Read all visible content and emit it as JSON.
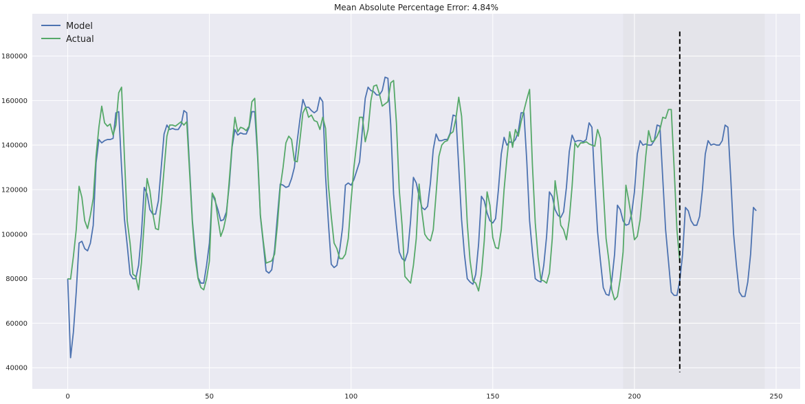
{
  "chart_data": {
    "type": "line",
    "title": "Mean Absolute Percentage Error: 4.84%",
    "xlabel": "",
    "ylabel": "",
    "xlim": [
      -12.5,
      258.5
    ],
    "ylim": [
      30500,
      199000
    ],
    "x_ticks": [
      0,
      50,
      100,
      150,
      200,
      250
    ],
    "y_ticks": [
      40000,
      60000,
      80000,
      100000,
      120000,
      140000,
      160000,
      180000
    ],
    "grid": true,
    "legend_position": "top-left",
    "shaded_region": {
      "x_start": 196,
      "x_end": 246
    },
    "vertical_marker": {
      "x": 216,
      "y_start": 38000,
      "y_end": 191000,
      "style": "dashed"
    },
    "colors": {
      "model": "#4c72b0",
      "actual": "#55a868",
      "plot_bg": "#eaeaf2",
      "shaded_bg": "#e4e4ea",
      "grid": "#ffffff",
      "marker": "#000000"
    },
    "series": [
      {
        "name": "Model",
        "x_start": 0,
        "values": [
          80000,
          44500,
          56000,
          74000,
          96000,
          96800,
          93500,
          92500,
          96000,
          104000,
          132000,
          142500,
          141000,
          142000,
          142500,
          142500,
          143000,
          154500,
          155000,
          130000,
          107000,
          95000,
          82000,
          80000,
          80000,
          86000,
          100000,
          121000,
          118000,
          111000,
          109000,
          109000,
          115000,
          130000,
          145000,
          149000,
          147000,
          147500,
          147000,
          147000,
          149000,
          155500,
          154500,
          130000,
          106000,
          92000,
          80500,
          78000,
          78000,
          86000,
          96000,
          118000,
          115000,
          111000,
          106000,
          106500,
          110000,
          122000,
          139000,
          147000,
          144500,
          145500,
          145000,
          145000,
          148000,
          155000,
          155000,
          135000,
          108000,
          96000,
          83500,
          82500,
          84000,
          93000,
          108000,
          122500,
          122000,
          121000,
          121500,
          125000,
          130000,
          142000,
          152000,
          160500,
          157000,
          157000,
          155500,
          154500,
          155500,
          161500,
          159500,
          126000,
          105000,
          86500,
          85000,
          86000,
          93000,
          103000,
          122000,
          123000,
          122000,
          124500,
          128500,
          132500,
          147000,
          161000,
          166000,
          164500,
          164000,
          162500,
          162500,
          164500,
          170500,
          170000,
          149000,
          118000,
          104000,
          92000,
          89000,
          88000,
          92000,
          106000,
          125500,
          123000,
          117000,
          112000,
          111000,
          112500,
          123000,
          138000,
          145000,
          142000,
          142000,
          142500,
          142500,
          145500,
          153500,
          153000,
          130000,
          106500,
          91000,
          80000,
          78500,
          77500,
          82000,
          95500,
          117000,
          115000,
          109500,
          106000,
          105000,
          107000,
          120000,
          136000,
          143500,
          140000,
          141500,
          141000,
          142500,
          146000,
          154500,
          154500,
          133000,
          106000,
          92000,
          80000,
          79000,
          78500,
          86000,
          99000,
          119000,
          117000,
          111000,
          108500,
          107500,
          110000,
          121000,
          137000,
          144500,
          141500,
          142000,
          142000,
          141500,
          142500,
          150000,
          148000,
          123000,
          101000,
          88000,
          76000,
          73000,
          72500,
          79000,
          91000,
          113000,
          111000,
          106000,
          104000,
          104500,
          109000,
          119000,
          136000,
          142000,
          140000,
          140500,
          140000,
          140000,
          142000,
          149000,
          148500,
          125000,
          102000,
          88000,
          74000,
          72500,
          72500,
          79000,
          91000,
          112000,
          110500,
          106000,
          104000,
          104000,
          108000,
          120000,
          136000,
          142000,
          140000,
          140500,
          140000,
          140000,
          142000,
          149000,
          148000,
          125000,
          100000,
          86000,
          74000,
          72000,
          72000,
          78500,
          91000,
          112000,
          110500
        ]
      },
      {
        "name": "Actual",
        "x_start": 0,
        "values": [
          80000,
          79800,
          90000,
          102000,
          121500,
          116500,
          106000,
          102500,
          108500,
          116000,
          135000,
          148000,
          157500,
          150000,
          148500,
          149500,
          144500,
          149000,
          163500,
          166000,
          135000,
          106000,
          96000,
          82000,
          81000,
          75000,
          87000,
          105000,
          125000,
          119500,
          109500,
          102500,
          102000,
          114000,
          129000,
          144000,
          149000,
          149000,
          148500,
          149500,
          150500,
          149000,
          150500,
          128000,
          105000,
          89000,
          80000,
          76000,
          75000,
          80000,
          88000,
          118500,
          116000,
          107000,
          99000,
          102500,
          108500,
          124000,
          140000,
          152500,
          146000,
          148000,
          147500,
          146500,
          148500,
          159500,
          161000,
          137000,
          108500,
          97000,
          87000,
          87500,
          88000,
          91000,
          104000,
          121000,
          130000,
          141000,
          144000,
          142500,
          133000,
          132500,
          143000,
          154500,
          157000,
          152500,
          153500,
          151000,
          150500,
          147000,
          152500,
          147500,
          122000,
          108000,
          96000,
          93500,
          89000,
          89000,
          91000,
          98000,
          115000,
          130000,
          141000,
          152500,
          152500,
          141500,
          147000,
          160000,
          166500,
          167000,
          163000,
          157500,
          158500,
          159500,
          168000,
          169000,
          150000,
          120000,
          104000,
          81000,
          79500,
          78000,
          86000,
          98000,
          122500,
          110000,
          100000,
          98000,
          97000,
          102000,
          118000,
          135000,
          140000,
          141500,
          142000,
          145000,
          146000,
          152000,
          161500,
          153000,
          131000,
          105000,
          88000,
          79000,
          78000,
          74500,
          82000,
          97000,
          119000,
          113000,
          98500,
          94000,
          93500,
          102000,
          120000,
          134000,
          146000,
          139000,
          147000,
          144000,
          150500,
          155500,
          160500,
          165000,
          131000,
          105000,
          89500,
          79500,
          79000,
          78000,
          82500,
          98000,
          124000,
          115000,
          104000,
          102000,
          97500,
          106500,
          121500,
          141000,
          139000,
          141000,
          141000,
          141500,
          140500,
          140000,
          139500,
          147000,
          143000,
          120000,
          98000,
          88000,
          75000,
          70500,
          72000,
          80000,
          92000,
          122000,
          115000,
          107000,
          97500,
          99000,
          106500,
          120000,
          135000,
          146500,
          141500,
          142000,
          144000,
          147000,
          152500,
          152000,
          156000,
          156000,
          130000,
          102000,
          87500
        ]
      }
    ]
  }
}
